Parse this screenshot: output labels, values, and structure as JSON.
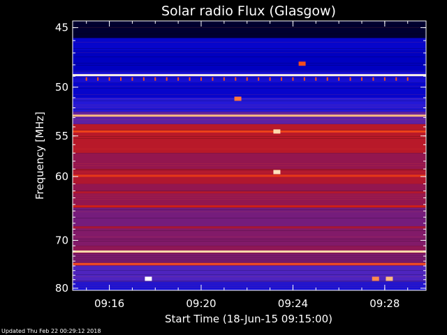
{
  "chart_data": {
    "type": "heatmap",
    "title": "Solar radio Flux (Glasgow)",
    "xlabel": "Start Time (18-Jun-15 09:15:00)",
    "ylabel": "Frequency [MHz]",
    "x_unit": "minutes",
    "xlim": [
      -0.6,
      14.8
    ],
    "ylim": [
      44.5,
      80.5
    ],
    "y_scale": "reciprocal",
    "x_ticks": [
      {
        "minute": 1,
        "label": "09:16"
      },
      {
        "minute": 5,
        "label": "09:20"
      },
      {
        "minute": 9,
        "label": "09:24"
      },
      {
        "minute": 13,
        "label": "09:28"
      }
    ],
    "y_ticks": [
      {
        "value": 45,
        "label": "45"
      },
      {
        "value": 50,
        "label": "50"
      },
      {
        "value": 55,
        "label": "55"
      },
      {
        "value": 60,
        "label": "60"
      },
      {
        "value": 70,
        "label": "70"
      },
      {
        "value": 80,
        "label": "80"
      }
    ],
    "colormap": [
      "#000000",
      "#0000c8",
      "#3c28e0",
      "#6a1e8c",
      "#a0143c",
      "#d21e14",
      "#ff5a1e",
      "#ffd296",
      "#ffffff"
    ],
    "background_bands": [
      {
        "f1": 44.5,
        "f2": 45.8,
        "level": 0.03
      },
      {
        "f1": 45.8,
        "f2": 46.8,
        "level": 0.14
      },
      {
        "f1": 46.8,
        "f2": 48.5,
        "level": 0.12
      },
      {
        "f1": 48.5,
        "f2": 49.6,
        "level": 0.17
      },
      {
        "f1": 49.6,
        "f2": 51.0,
        "level": 0.14
      },
      {
        "f1": 51.0,
        "f2": 52.4,
        "level": 0.2
      },
      {
        "f1": 52.4,
        "f2": 53.7,
        "level": 0.34
      },
      {
        "f1": 53.7,
        "f2": 57.0,
        "level": 0.56
      },
      {
        "f1": 57.0,
        "f2": 59.0,
        "level": 0.47
      },
      {
        "f1": 59.0,
        "f2": 61.0,
        "level": 0.54
      },
      {
        "f1": 61.0,
        "f2": 64.5,
        "level": 0.47
      },
      {
        "f1": 64.5,
        "f2": 67.5,
        "level": 0.4
      },
      {
        "f1": 67.5,
        "f2": 71.0,
        "level": 0.43
      },
      {
        "f1": 71.0,
        "f2": 72.5,
        "level": 0.46
      },
      {
        "f1": 72.5,
        "f2": 75.0,
        "level": 0.42
      },
      {
        "f1": 75.0,
        "f2": 78.5,
        "level": 0.3
      },
      {
        "f1": 78.5,
        "f2": 80.5,
        "level": 0.18
      }
    ],
    "interference_lines": [
      {
        "freq": 48.9,
        "level": 0.97
      },
      {
        "freq": 52.8,
        "level": 0.85
      },
      {
        "freq": 54.5,
        "level": 0.7
      },
      {
        "freq": 59.9,
        "level": 0.68
      },
      {
        "freq": 62.2,
        "level": 0.55
      },
      {
        "freq": 64.3,
        "level": 0.62
      },
      {
        "freq": 67.7,
        "level": 0.52
      },
      {
        "freq": 72.1,
        "level": 0.9
      },
      {
        "freq": 74.6,
        "level": 0.72
      }
    ],
    "bursts": [
      {
        "minute": 2.7,
        "freq": 77.8,
        "level": 1.0
      },
      {
        "minute": 6.6,
        "freq": 51.1,
        "level": 0.78
      },
      {
        "minute": 8.3,
        "freq": 54.5,
        "level": 0.9
      },
      {
        "minute": 8.3,
        "freq": 59.4,
        "level": 0.92
      },
      {
        "minute": 9.4,
        "freq": 47.9,
        "level": 0.72
      },
      {
        "minute": 12.6,
        "freq": 77.8,
        "level": 0.8
      },
      {
        "minute": 13.2,
        "freq": 77.8,
        "level": 0.85
      }
    ],
    "grid": false,
    "legend": "none"
  },
  "footer": {
    "updated": "Updated Thu Feb 22 00:29:12 2018"
  }
}
